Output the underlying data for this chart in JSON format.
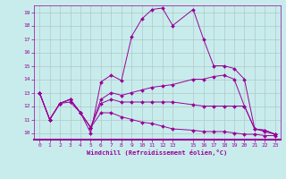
{
  "xlabel": "Windchill (Refroidissement éolien,°C)",
  "bg_color": "#c8ecec",
  "line_color": "#990099",
  "grid_color": "#b0c8c8",
  "xlim": [
    -0.5,
    23.5
  ],
  "ylim": [
    9.5,
    19.5
  ],
  "xticks": [
    0,
    1,
    2,
    3,
    4,
    5,
    6,
    7,
    8,
    9,
    10,
    11,
    12,
    13,
    15,
    16,
    17,
    18,
    19,
    20,
    21,
    22,
    23
  ],
  "yticks": [
    10,
    11,
    12,
    13,
    14,
    15,
    16,
    17,
    18,
    19
  ],
  "curves": [
    {
      "x": [
        0,
        1,
        2,
        3,
        4,
        5,
        6,
        7,
        8,
        9,
        10,
        11,
        12,
        13,
        15,
        16,
        17,
        18,
        19,
        20,
        21,
        22,
        23
      ],
      "y": [
        13,
        11,
        12.2,
        12.5,
        11.5,
        10.0,
        13.8,
        14.3,
        13.9,
        17.2,
        18.5,
        19.2,
        19.3,
        18.0,
        19.2,
        17.0,
        15.0,
        15.0,
        14.8,
        14.0,
        10.3,
        10.2,
        9.9
      ]
    },
    {
      "x": [
        0,
        1,
        2,
        3,
        4,
        5,
        6,
        7,
        8,
        9,
        10,
        11,
        12,
        13,
        15,
        16,
        17,
        18,
        19,
        20,
        21,
        22,
        23
      ],
      "y": [
        13,
        11,
        12.2,
        12.5,
        11.5,
        10.4,
        12.5,
        13.0,
        12.8,
        13.0,
        13.2,
        13.4,
        13.5,
        13.6,
        14.0,
        14.0,
        14.2,
        14.3,
        14.0,
        12.0,
        10.3,
        10.2,
        9.9
      ]
    },
    {
      "x": [
        0,
        1,
        2,
        3,
        4,
        5,
        6,
        7,
        8,
        9,
        10,
        11,
        12,
        13,
        15,
        16,
        17,
        18,
        19,
        20,
        21,
        22,
        23
      ],
      "y": [
        13,
        11,
        12.2,
        12.5,
        11.5,
        10.4,
        12.2,
        12.5,
        12.3,
        12.3,
        12.3,
        12.3,
        12.3,
        12.3,
        12.1,
        12.0,
        12.0,
        12.0,
        12.0,
        12.0,
        10.3,
        10.1,
        9.9
      ]
    },
    {
      "x": [
        0,
        1,
        2,
        3,
        4,
        5,
        6,
        7,
        8,
        9,
        10,
        11,
        12,
        13,
        15,
        16,
        17,
        18,
        19,
        20,
        21,
        22,
        23
      ],
      "y": [
        13,
        11,
        12.2,
        12.3,
        11.5,
        10.4,
        11.5,
        11.5,
        11.2,
        11.0,
        10.8,
        10.7,
        10.5,
        10.3,
        10.2,
        10.1,
        10.1,
        10.1,
        10.0,
        9.9,
        9.9,
        9.8,
        9.8
      ]
    }
  ]
}
